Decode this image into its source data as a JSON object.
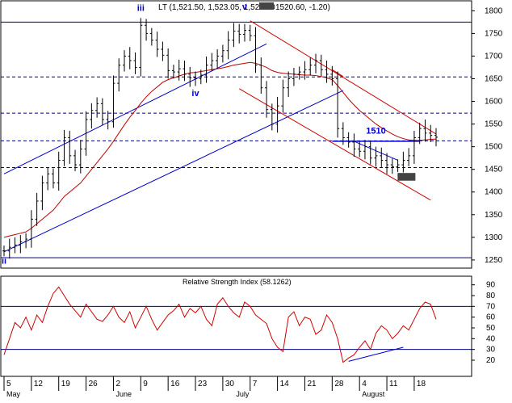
{
  "chart_data": [
    {
      "type": "line",
      "title": "LT (1,521.50, 1,523.05, 1,520.60, 1,520.60, -1.20)",
      "title_parts": {
        "prefix": "LT (1,521.50, 1,523.05, 1,520.60",
        "suffix": "1520.60, -1.20)"
      },
      "xlabel": "",
      "ylabel": "",
      "ylim": [
        1232,
        1822
      ],
      "y_ticks": [
        1250,
        1300,
        1350,
        1400,
        1450,
        1500,
        1550,
        1600,
        1650,
        1700,
        1750,
        1800
      ],
      "x_ticks": [
        {
          "label": "5",
          "i": 0
        },
        {
          "label": "12",
          "i": 5
        },
        {
          "label": "19",
          "i": 10
        },
        {
          "label": "26",
          "i": 15
        },
        {
          "label": "2",
          "i": 20
        },
        {
          "label": "9",
          "i": 25
        },
        {
          "label": "16",
          "i": 30
        },
        {
          "label": "23",
          "i": 35
        },
        {
          "label": "30",
          "i": 40
        },
        {
          "label": "7",
          "i": 45
        },
        {
          "label": "14",
          "i": 50
        },
        {
          "label": "21",
          "i": 55
        },
        {
          "label": "28",
          "i": 60
        },
        {
          "label": "4",
          "i": 65
        },
        {
          "label": "11",
          "i": 70
        },
        {
          "label": "18",
          "i": 75
        }
      ],
      "month_labels": [
        {
          "label": "May",
          "i": 0
        },
        {
          "label": "June",
          "i": 20
        },
        {
          "label": "July",
          "i": 42
        },
        {
          "label": "August",
          "i": 65
        }
      ],
      "x_count": 80,
      "series": [
        {
          "name": "",
          "style": "ohlc",
          "color": "#000000",
          "close": [
            1270,
            1278,
            1283,
            1290,
            1296,
            1340,
            1380,
            1420,
            1440,
            1420,
            1470,
            1520,
            1480,
            1460,
            1495,
            1560,
            1580,
            1595,
            1560,
            1555,
            1640,
            1680,
            1700,
            1690,
            1675,
            1768,
            1750,
            1735,
            1715,
            1702,
            1668,
            1665,
            1672,
            1660,
            1652,
            1650,
            1658,
            1680,
            1690,
            1700,
            1712,
            1735,
            1755,
            1748,
            1757,
            1745,
            1680,
            1630,
            1582,
            1550,
            1590,
            1630,
            1650,
            1660,
            1665,
            1670,
            1680,
            1690,
            1670,
            1660,
            1650,
            1540,
            1520,
            1510,
            1495,
            1490,
            1500,
            1475,
            1480,
            1470,
            1460,
            1456,
            1460,
            1470,
            1480,
            1520,
            1540,
            1530,
            1525,
            1521
          ]
        },
        {
          "name": "",
          "style": "line",
          "color": "#c00000",
          "values": [
            1300,
            1303,
            1306,
            1309,
            1312,
            1320,
            1330,
            1340,
            1350,
            1360,
            1375,
            1390,
            1400,
            1410,
            1420,
            1435,
            1450,
            1465,
            1480,
            1495,
            1512,
            1530,
            1548,
            1565,
            1580,
            1596,
            1610,
            1622,
            1632,
            1642,
            1648,
            1652,
            1656,
            1660,
            1663,
            1664,
            1666,
            1668,
            1670,
            1672,
            1674,
            1677,
            1680,
            1682,
            1684,
            1686,
            1684,
            1680,
            1675,
            1668,
            1664,
            1662,
            1661,
            1660,
            1659,
            1658,
            1658,
            1657,
            1655,
            1652,
            1648,
            1635,
            1620,
            1605,
            1592,
            1580,
            1570,
            1560,
            1550,
            1542,
            1535,
            1528,
            1522,
            1518,
            1515,
            1514,
            1514,
            1515,
            1516,
            1517
          ]
        }
      ],
      "horizontal_levels": [
        1775,
        1654,
        1574,
        1513,
        1454,
        1255
      ],
      "annotations": [
        {
          "label": "iii",
          "i": 25,
          "price": 1800
        },
        {
          "label": "iv",
          "i": 35,
          "price": 1612
        },
        {
          "label": "v",
          "i": 44,
          "price": 1802
        },
        {
          "label": "ii",
          "i": 0,
          "price": 1242
        },
        {
          "label": "1510",
          "i": 68,
          "price": 1529
        }
      ],
      "blue_channel": {
        "lower": [
          [
            0,
            1268
          ],
          [
            62,
            1624
          ]
        ],
        "upper": [
          [
            0,
            1440
          ],
          [
            48,
            1727
          ]
        ],
        "resistance_1510": [
          [
            60,
            1512
          ],
          [
            76,
            1512
          ]
        ],
        "pullback": [
          [
            64,
            1512
          ],
          [
            72,
            1470
          ]
        ]
      },
      "red_channel": {
        "upper": [
          [
            45,
            1778
          ],
          [
            79,
            1528
          ]
        ],
        "lower": [
          [
            43,
            1628
          ],
          [
            78,
            1382
          ]
        ],
        "mid": [
          [
            60,
            1670
          ],
          [
            62,
            1655
          ]
        ]
      },
      "highlight_box": {
        "i": 73,
        "price_top": 1442,
        "price_bottom": 1425,
        "color": "#444444"
      }
    },
    {
      "type": "line",
      "title": "Relative Strength Index (58.1262)",
      "ylim": [
        5,
        98
      ],
      "y_ticks": [
        20,
        30,
        40,
        50,
        60,
        70,
        80,
        90
      ],
      "horizontal_levels": [
        70,
        30
      ],
      "series": [
        {
          "name": "",
          "color": "#d00000",
          "values": [
            25,
            40,
            55,
            50,
            60,
            48,
            62,
            55,
            70,
            82,
            88,
            80,
            72,
            66,
            60,
            72,
            65,
            58,
            56,
            62,
            70,
            60,
            55,
            65,
            50,
            60,
            70,
            58,
            48,
            55,
            62,
            66,
            72,
            60,
            68,
            64,
            70,
            58,
            52,
            72,
            78,
            70,
            64,
            60,
            74,
            70,
            62,
            58,
            54,
            40,
            32,
            28,
            60,
            65,
            52,
            60,
            58,
            44,
            48,
            62,
            55,
            40,
            18,
            22,
            25,
            32,
            38,
            30,
            45,
            52,
            48,
            40,
            45,
            52,
            48,
            58,
            68,
            74,
            72,
            58
          ]
        },
        {
          "name": "",
          "color": "#0000cc",
          "style": "trendline",
          "values_xy": [
            [
              63,
              19
            ],
            [
              73,
              32
            ]
          ]
        }
      ]
    }
  ]
}
